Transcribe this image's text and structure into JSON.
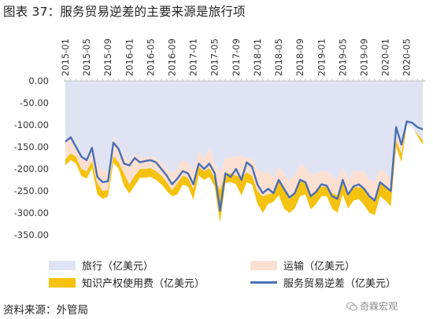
{
  "title": "图表 37：服务贸易逆差的主要来源是旅行项",
  "source": "资料来源：外管局",
  "watermark": "奇霖宏观",
  "colors": {
    "travel": "#dfe3f3",
    "transport": "#fbe0d2",
    "ip": "#f5c20f",
    "deficit": "#4a6fb5"
  },
  "chart_data": {
    "type": "area",
    "ylim": [
      -350,
      0
    ],
    "yticks": [
      "0.00",
      "-50.00",
      "-100.00",
      "-150.00",
      "-200.00",
      "-250.00",
      "-300.00",
      "-350.00"
    ],
    "ytick_values": [
      0,
      -50,
      -100,
      -150,
      -200,
      -250,
      -300,
      -350
    ],
    "xtick_labels": [
      "2015-01",
      "2015-05",
      "2015-09",
      "2016-01",
      "2016-05",
      "2016-09",
      "2017-01",
      "2017-05",
      "2017-09",
      "2018-01",
      "2018-05",
      "2018-09",
      "2019-01",
      "2019-05",
      "2019-09",
      "2020-01",
      "2020-05"
    ],
    "x_start": "2015-01",
    "x_end": "2020-08",
    "x_interval_months": 1,
    "legend_position": "bottom",
    "series": [
      {
        "name": "旅行（亿美元）",
        "kind": "area",
        "values": [
          -140,
          -128,
          -150,
          -170,
          -178,
          -155,
          -190,
          -205,
          -205,
          -130,
          -150,
          -175,
          -180,
          -165,
          -175,
          -175,
          -170,
          -175,
          -185,
          -200,
          -210,
          -200,
          -180,
          -185,
          -205,
          -160,
          -175,
          -155,
          -185,
          -210,
          -175,
          -175,
          -170,
          -170,
          -175,
          -175,
          -200,
          -210,
          -205,
          -220,
          -195,
          -210,
          -225,
          -215,
          -190,
          -195,
          -215,
          -210,
          -205,
          -205,
          -215,
          -225,
          -195,
          -225,
          -205,
          -205,
          -205,
          -225,
          -230,
          -200,
          -210,
          -220,
          -120,
          -150,
          -100,
          -105,
          -120,
          -135
        ],
        "x": [
          "2015-01",
          "2015-02",
          "2015-03",
          "2015-04",
          "2015-05",
          "2015-06",
          "2015-07",
          "2015-08",
          "2015-09",
          "2015-10",
          "2015-11",
          "2015-12",
          "2016-01",
          "2016-02",
          "2016-03",
          "2016-04",
          "2016-05",
          "2016-06",
          "2016-07",
          "2016-08",
          "2016-09",
          "2016-10",
          "2016-11",
          "2016-12",
          "2017-01",
          "2017-02",
          "2017-03",
          "2017-04",
          "2017-05",
          "2017-06",
          "2017-07",
          "2017-08",
          "2017-09",
          "2017-10",
          "2017-11",
          "2017-12",
          "2018-01",
          "2018-02",
          "2018-03",
          "2018-04",
          "2018-05",
          "2018-06",
          "2018-07",
          "2018-08",
          "2018-09",
          "2018-10",
          "2018-11",
          "2018-12",
          "2019-01",
          "2019-02",
          "2019-03",
          "2019-04",
          "2019-05",
          "2019-06",
          "2019-07",
          "2019-08",
          "2019-09",
          "2019-10",
          "2019-11",
          "2019-12",
          "2020-01",
          "2020-02",
          "2020-03",
          "2020-04",
          "2020-05",
          "2020-06",
          "2020-07",
          "2020-08"
        ]
      },
      {
        "name": "运输（亿美元）",
        "kind": "area",
        "total_values": [
          -178,
          -165,
          -172,
          -200,
          -205,
          -182,
          -232,
          -250,
          -248,
          -170,
          -185,
          -210,
          -235,
          -215,
          -200,
          -200,
          -198,
          -205,
          -215,
          -230,
          -248,
          -232,
          -215,
          -220,
          -245,
          -195,
          -205,
          -198,
          -220,
          -248,
          -210,
          -210,
          -215,
          -218,
          -208,
          -215,
          -250,
          -262,
          -258,
          -255,
          -228,
          -244,
          -270,
          -255,
          -228,
          -232,
          -258,
          -250,
          -240,
          -240,
          -255,
          -260,
          -232,
          -262,
          -242,
          -242,
          -242,
          -262,
          -268,
          -232,
          -242,
          -250,
          -135,
          -165,
          -85,
          -78,
          -85,
          -98
        ]
      },
      {
        "name": "知识产权使用费（亿美元）",
        "kind": "area",
        "total_values": [
          -192,
          -180,
          -188,
          -216,
          -222,
          -198,
          -258,
          -268,
          -262,
          -186,
          -200,
          -238,
          -256,
          -238,
          -220,
          -220,
          -218,
          -225,
          -235,
          -250,
          -262,
          -258,
          -236,
          -240,
          -270,
          -215,
          -225,
          -218,
          -240,
          -322,
          -232,
          -230,
          -235,
          -260,
          -230,
          -236,
          -278,
          -300,
          -280,
          -275,
          -260,
          -290,
          -300,
          -290,
          -262,
          -258,
          -292,
          -280,
          -262,
          -262,
          -290,
          -300,
          -258,
          -290,
          -272,
          -268,
          -282,
          -300,
          -305,
          -262,
          -272,
          -285,
          -150,
          -185,
          -100,
          -102,
          -125,
          -145
        ]
      },
      {
        "name": "服务贸易逆差（亿美元）",
        "kind": "line",
        "values": [
          -138,
          -128,
          -150,
          -172,
          -180,
          -152,
          -218,
          -230,
          -228,
          -140,
          -155,
          -188,
          -192,
          -175,
          -185,
          -182,
          -180,
          -185,
          -200,
          -215,
          -235,
          -222,
          -205,
          -210,
          -235,
          -188,
          -200,
          -188,
          -210,
          -295,
          -210,
          -218,
          -200,
          -225,
          -185,
          -195,
          -235,
          -255,
          -245,
          -255,
          -225,
          -245,
          -265,
          -255,
          -225,
          -230,
          -262,
          -252,
          -235,
          -238,
          -262,
          -268,
          -225,
          -258,
          -240,
          -235,
          -245,
          -262,
          -272,
          -230,
          -240,
          -250,
          -105,
          -145,
          -92,
          -95,
          -105,
          -110
        ]
      }
    ]
  }
}
